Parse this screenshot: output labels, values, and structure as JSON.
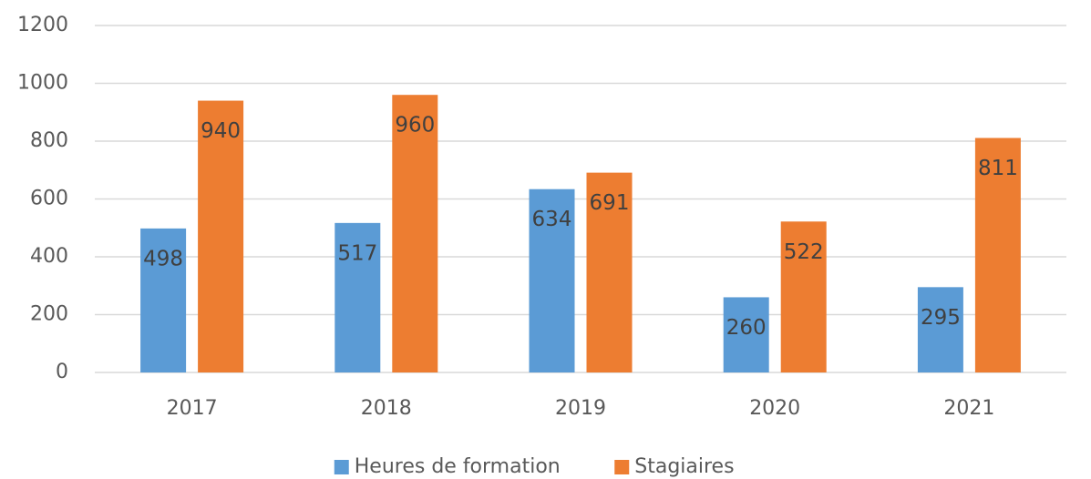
{
  "chart_data": {
    "type": "bar",
    "categories": [
      "2017",
      "2018",
      "2019",
      "2020",
      "2021"
    ],
    "series": [
      {
        "name": "Heures de formation",
        "color": "#5b9bd5",
        "values": [
          498,
          517,
          634,
          260,
          295
        ]
      },
      {
        "name": "Stagiaires",
        "color": "#ed7d31",
        "values": [
          940,
          960,
          691,
          522,
          811
        ]
      }
    ],
    "ylim": [
      0,
      1200
    ],
    "yticks": [
      0,
      200,
      400,
      600,
      800,
      1000,
      1200
    ],
    "grid": true,
    "legend": "bottom"
  }
}
